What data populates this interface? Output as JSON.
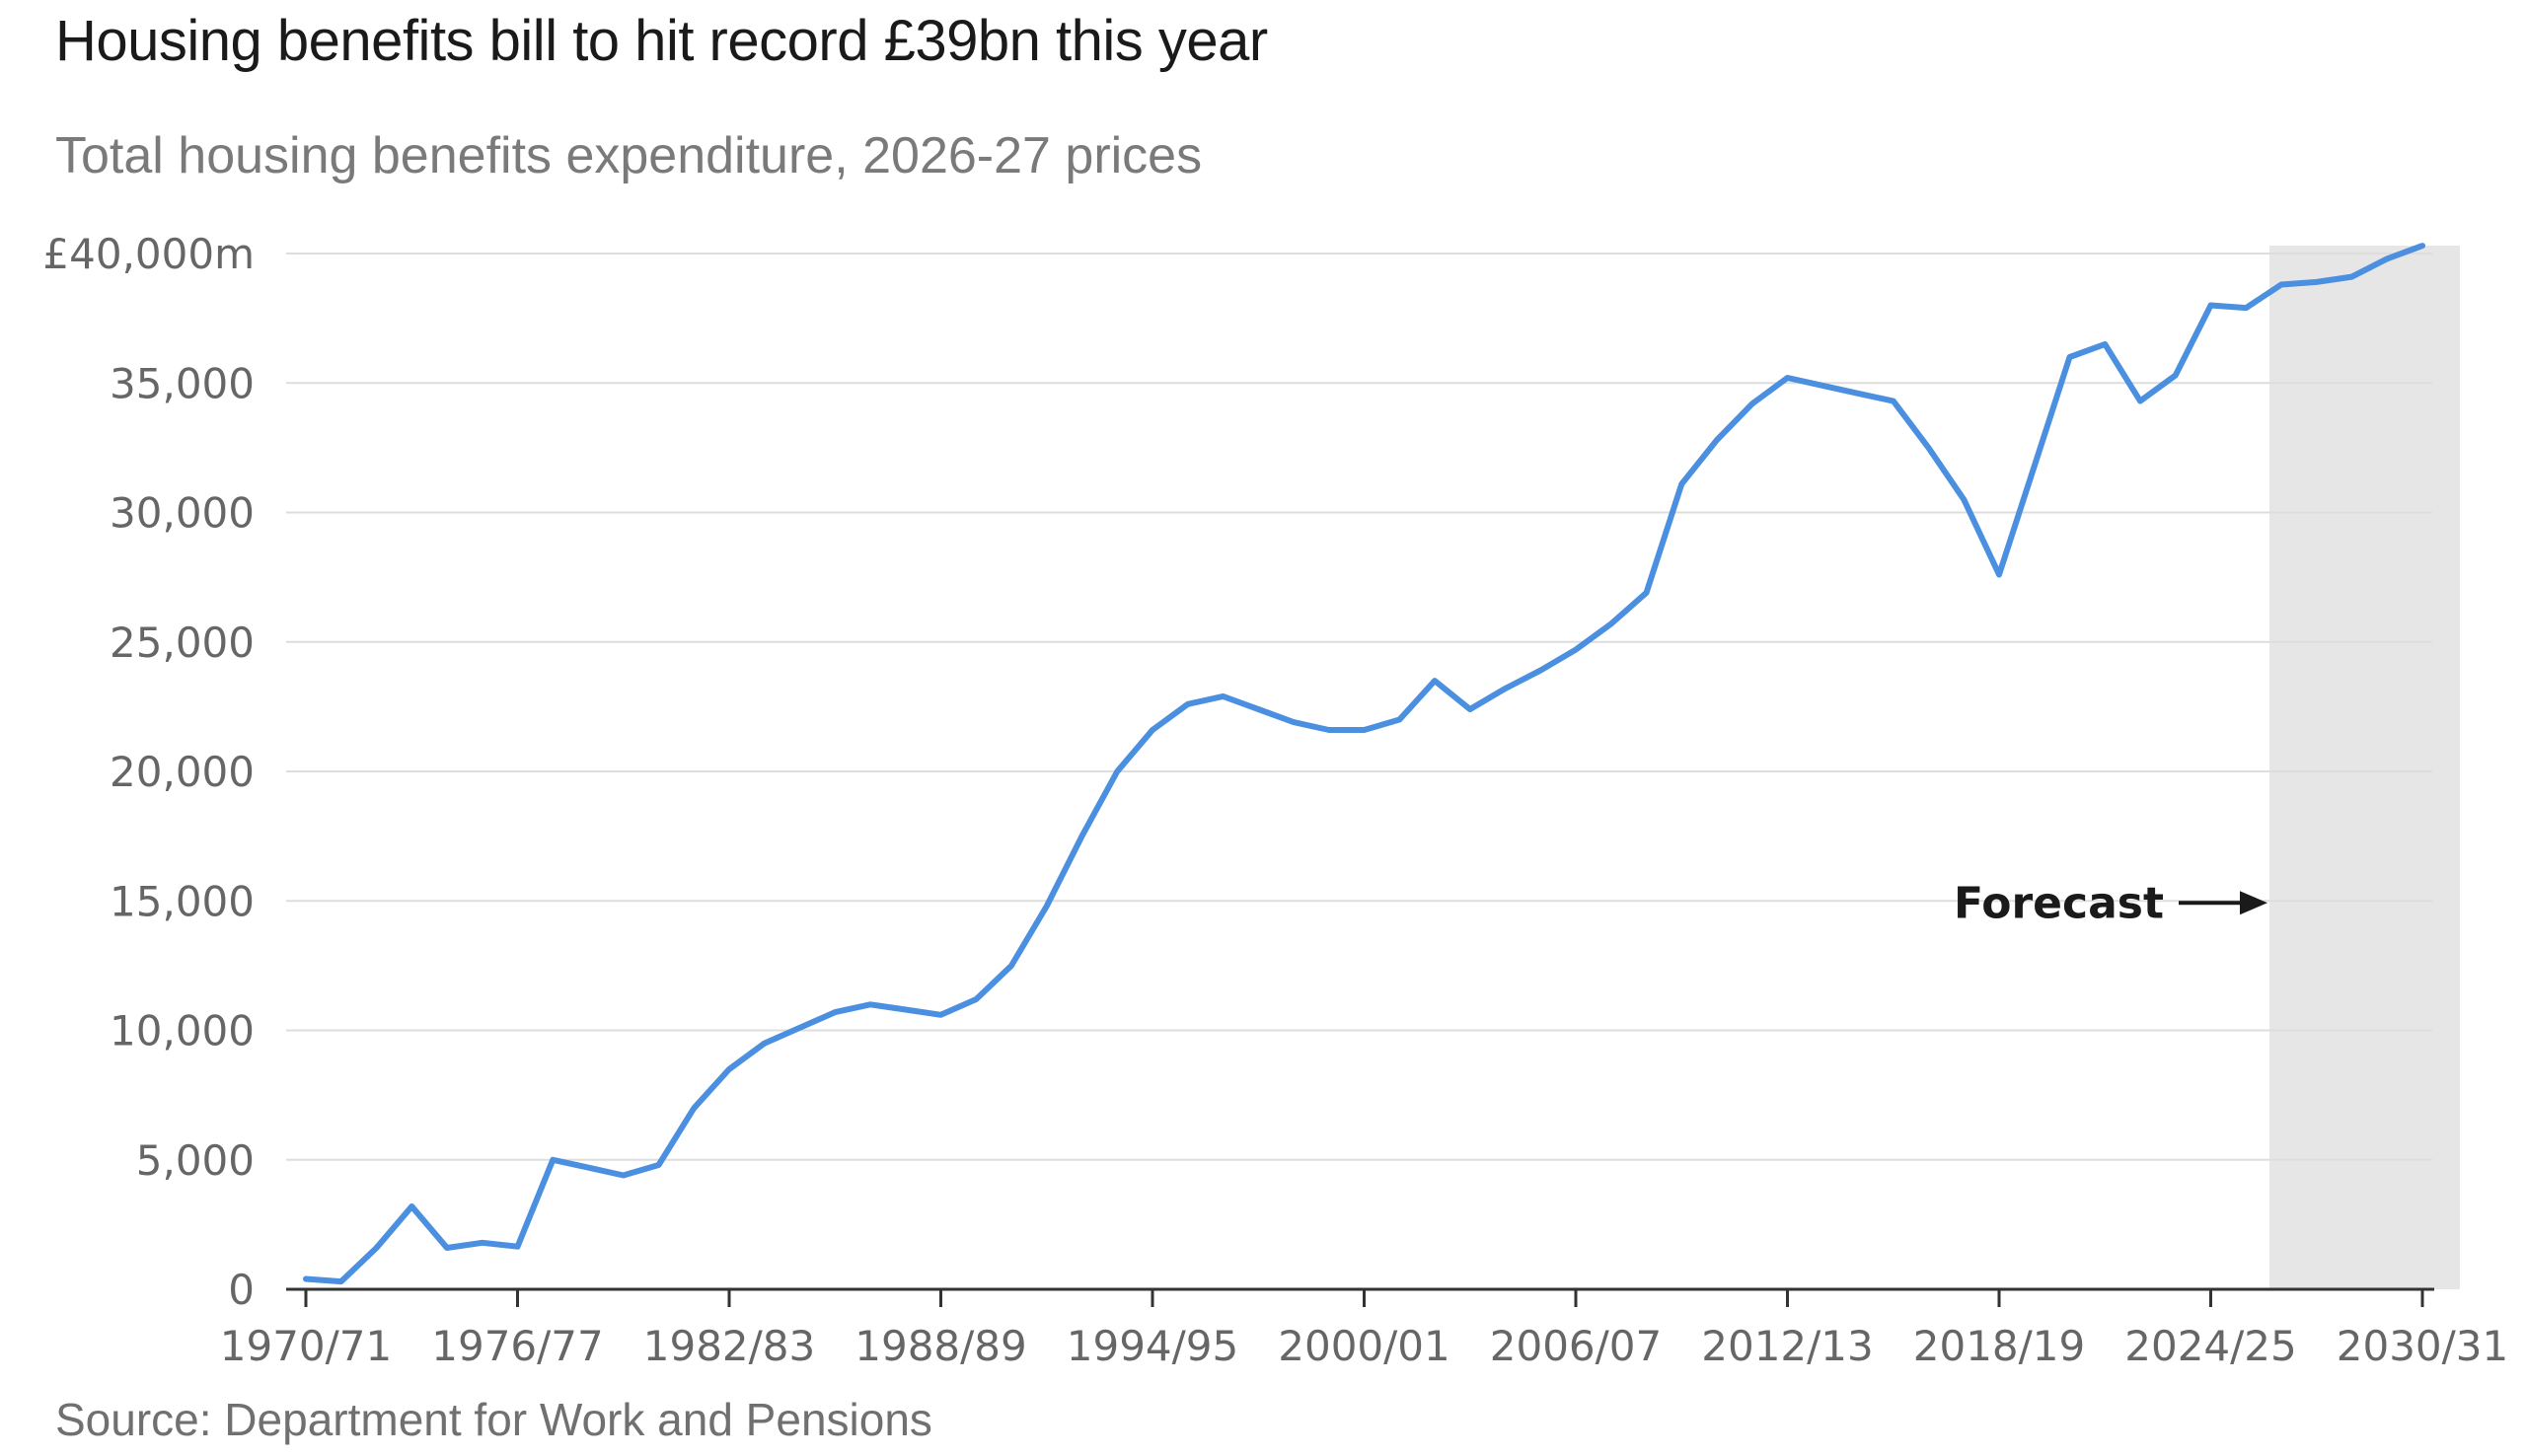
{
  "title": "Housing benefits bill to hit record £39bn this year",
  "subtitle": "Total housing benefits expenditure, 2026-27 prices",
  "source": "Source: Department for Work and Pensions",
  "colors": {
    "line": "#4a8fe0",
    "forecast_shade": "#e6e6e6",
    "grid": "#dddddd",
    "axis": "#333333"
  },
  "chart_data": {
    "type": "line",
    "title": "Housing benefits bill to hit record £39bn this year",
    "subtitle": "Total housing benefits expenditure, 2026-27 prices",
    "xlabel": "",
    "ylabel": "",
    "ylim": [
      0,
      40000
    ],
    "y_ticks": [
      0,
      5000,
      10000,
      15000,
      20000,
      25000,
      30000,
      35000,
      40000
    ],
    "y_tick_labels": [
      "0",
      "5,000",
      "10,000",
      "15,000",
      "20,000",
      "25,000",
      "30,000",
      "35,000",
      "£40,000m"
    ],
    "x_tick_labels": [
      "1970/71",
      "1976/77",
      "1982/83",
      "1988/89",
      "1994/95",
      "2000/01",
      "2006/07",
      "2012/13",
      "2018/19",
      "2024/25",
      "2030/31"
    ],
    "grid": true,
    "forecast": {
      "label": "Forecast",
      "start": "2026/27",
      "end": "2030/31"
    },
    "categories": [
      "1970/71",
      "1971/72",
      "1972/73",
      "1973/74",
      "1974/75",
      "1975/76",
      "1976/77",
      "1977/78",
      "1978/79",
      "1979/80",
      "1980/81",
      "1981/82",
      "1982/83",
      "1983/84",
      "1984/85",
      "1985/86",
      "1986/87",
      "1987/88",
      "1988/89",
      "1989/90",
      "1990/91",
      "1991/92",
      "1992/93",
      "1993/94",
      "1994/95",
      "1995/96",
      "1996/97",
      "1997/98",
      "1998/99",
      "1999/00",
      "2000/01",
      "2001/02",
      "2002/03",
      "2003/04",
      "2004/05",
      "2005/06",
      "2006/07",
      "2007/08",
      "2008/09",
      "2009/10",
      "2010/11",
      "2011/12",
      "2012/13",
      "2013/14",
      "2014/15",
      "2015/16",
      "2016/17",
      "2017/18",
      "2018/19",
      "2019/20",
      "2020/21",
      "2021/22",
      "2022/23",
      "2023/24",
      "2024/25",
      "2025/26",
      "2026/27",
      "2027/28",
      "2028/29",
      "2029/30",
      "2030/31"
    ],
    "series": [
      {
        "values": [
          400,
          300,
          1600,
          3200,
          1600,
          1800,
          1650,
          5000,
          4700,
          4400,
          4800,
          7000,
          8500,
          9500,
          10100,
          10700,
          11000,
          10800,
          10600,
          11200,
          12500,
          14800,
          17500,
          20000,
          21600,
          22600,
          22900,
          22400,
          21900,
          21600,
          21600,
          22000,
          23500,
          22400,
          23200,
          23900,
          24700,
          25700,
          26900,
          31100,
          32800,
          34200,
          35200,
          34900,
          34600,
          34300,
          32500,
          30500,
          27600,
          31800,
          36000,
          36500,
          34300,
          35300,
          38000,
          37900,
          38800,
          38900,
          39100,
          39800,
          40300
        ]
      }
    ]
  }
}
